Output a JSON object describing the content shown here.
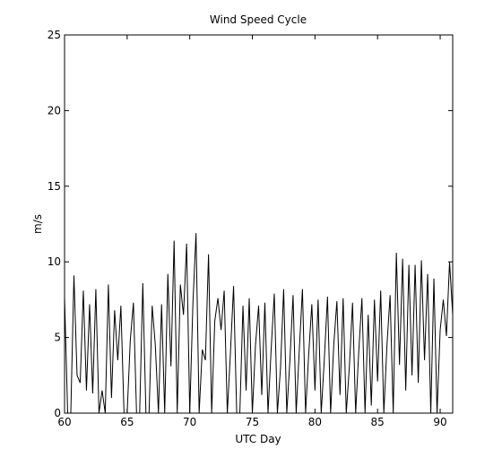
{
  "chart_data": {
    "type": "line",
    "title": "Wind Speed Cycle",
    "x_label": "UTC Day",
    "y_label": "m/s",
    "xlim": [
      60,
      91
    ],
    "ylim": [
      0,
      25
    ],
    "xticks": [
      60,
      65,
      70,
      75,
      80,
      85,
      90
    ],
    "yticks": [
      0,
      5,
      10,
      15,
      20,
      25
    ],
    "x": [
      60,
      60.25,
      60.5,
      60.75,
      61,
      61.25,
      61.5,
      61.75,
      62,
      62.25,
      62.5,
      62.75,
      63,
      63.25,
      63.5,
      63.75,
      64,
      64.25,
      64.5,
      64.75,
      65,
      65.25,
      65.5,
      65.75,
      66,
      66.25,
      66.5,
      66.75,
      67,
      67.25,
      67.5,
      67.75,
      68,
      68.25,
      68.5,
      68.75,
      69,
      69.25,
      69.5,
      69.75,
      70,
      70.25,
      70.5,
      70.75,
      71,
      71.25,
      71.5,
      71.75,
      72,
      72.25,
      72.5,
      72.75,
      73,
      73.25,
      73.5,
      73.75,
      74,
      74.25,
      74.5,
      74.75,
      75,
      75.25,
      75.5,
      75.75,
      76,
      76.25,
      76.5,
      76.75,
      77,
      77.25,
      77.5,
      77.75,
      78,
      78.25,
      78.5,
      78.75,
      79,
      79.25,
      79.5,
      79.75,
      80,
      80.25,
      80.5,
      80.75,
      81,
      81.25,
      81.5,
      81.75,
      82,
      82.25,
      82.5,
      82.75,
      83,
      83.25,
      83.5,
      83.75,
      84,
      84.25,
      84.5,
      84.75,
      85,
      85.25,
      85.5,
      85.75,
      86,
      86.25,
      86.5,
      86.75,
      87,
      87.25,
      87.5,
      87.75,
      88,
      88.25,
      88.5,
      88.75,
      89,
      89.25,
      89.5,
      89.75,
      90,
      90.25,
      90.5,
      90.75,
      91
    ],
    "series": [
      {
        "color": "#000000",
        "values": [
          7.7,
          0,
          0,
          9.1,
          2.5,
          2,
          8.1,
          1.5,
          7.2,
          1.3,
          8.2,
          0,
          1.5,
          0,
          8.5,
          1,
          6.8,
          3.5,
          7.1,
          0,
          0,
          4.8,
          7.3,
          0,
          0,
          8.6,
          0,
          0,
          7.1,
          4.5,
          0,
          7.2,
          0,
          9.2,
          3.1,
          11.4,
          0,
          8.5,
          6.5,
          11.2,
          0,
          7.2,
          11.9,
          0,
          4.2,
          3.5,
          10.5,
          0,
          6.1,
          7.6,
          5.5,
          8.1,
          0,
          4,
          8.4,
          0,
          0,
          7.1,
          1.5,
          7.6,
          0,
          4.5,
          7.1,
          1.2,
          7.3,
          0,
          4.2,
          7.9,
          0,
          3,
          8.2,
          0,
          3.5,
          7.8,
          0,
          4.2,
          8.2,
          0,
          3.9,
          7.2,
          1.5,
          7.5,
          0,
          3.6,
          7.7,
          0,
          4.5,
          7.4,
          1.2,
          7.6,
          0,
          3.1,
          7.3,
          0,
          4.1,
          7.6,
          0,
          6.5,
          0.5,
          7.5,
          2.1,
          8.1,
          0,
          4.5,
          7.8,
          0,
          10.6,
          3.2,
          10.2,
          1.5,
          9.8,
          2.5,
          9.8,
          2,
          10.1,
          3.5,
          9.2,
          0,
          8.9,
          0,
          5.5,
          7.5,
          5.1,
          10,
          6.5
        ]
      }
    ]
  }
}
